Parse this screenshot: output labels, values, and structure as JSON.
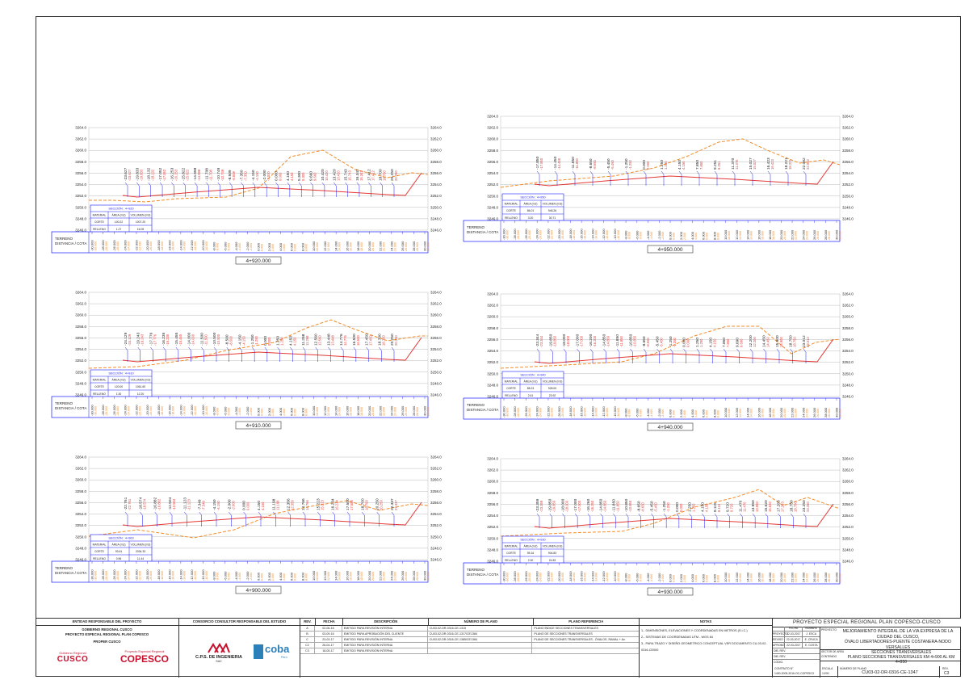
{
  "sections": [
    {
      "id": "s4920",
      "chainage": "4+920.000",
      "seccion_title": "SECCIÓN : 4+920",
      "material_header": "MATERIAL",
      "area_header": "ÁREA (m2)",
      "volumen_header": "VOLUMEN (m3)",
      "corte_label": "CORTE",
      "corte_area": "100.22",
      "corte_vol": "1007.20",
      "relleno_label": "RELLENO",
      "relleno_area": "1.27",
      "relleno_vol": "16.05",
      "offsets_top": [
        "-23.627",
        "-19.833",
        "-18.132",
        "-17.052",
        "-16.253",
        "-15.822",
        "-14.998",
        "-11.708",
        "-10.749",
        "-8.509",
        "-7.350",
        "-4.150",
        "-2.000",
        "0.000",
        "4.150",
        "5.300",
        "9.660",
        "10.420",
        "13.420",
        "15.743",
        "16.342",
        "17.412",
        "18.700",
        "20.250"
      ]
    },
    {
      "id": "s4950",
      "chainage": "4+950.000",
      "seccion_title": "SECCIÓN : 4+950",
      "material_header": "MATERIAL",
      "area_header": "ÁREA (m2)",
      "volumen_header": "VOLUMEN (m3)",
      "corte_label": "CORTE",
      "corte_area": "86.01",
      "corte_vol": "946.26",
      "relleno_label": "RELLENO",
      "relleno_area": "3.20",
      "relleno_vol": "30.71",
      "offsets_top": [
        "-17.850",
        "-14.450",
        "-11.850",
        "-8.650",
        "-5.450",
        "-1.250",
        "0.000",
        "1.250",
        "4.150",
        "7.850",
        "9.251",
        "11.370",
        "15.027",
        "16.423",
        "18.221",
        "22.092"
      ]
    },
    {
      "id": "s4910",
      "chainage": "4+910.000",
      "seccion_title": "SECCIÓN : 4+910",
      "material_header": "MATERIAL",
      "area_header": "ÁREA (m2)",
      "volumen_header": "VOLUMEN (m3)",
      "corte_label": "CORTE",
      "corte_area": "120.00",
      "corte_vol": "1061.60",
      "relleno_label": "RELLENO",
      "relleno_area": "1.30",
      "relleno_vol": "12.20",
      "offsets_top": [
        "-24.129",
        "-19.243",
        "-17.776",
        "-16.235",
        "-15.455",
        "-14.000",
        "-11.500",
        "-10.500",
        "-8.500",
        "-4.150",
        "-1.250",
        "0.000",
        "1.250",
        "4.150",
        "11.268",
        "12.560",
        "13.448",
        "14.776",
        "16.500",
        "17.450",
        "18.700",
        "20.250"
      ]
    },
    {
      "id": "s4940",
      "chainage": "4+940.000",
      "seccion_title": "SECCIÓN : 4+940",
      "material_header": "MATERIAL",
      "area_header": "ÁREA (m2)",
      "volumen_header": "VOLUMEN (m3)",
      "corte_label": "CORTE",
      "corte_area": "88.23",
      "corte_vol": "928.00",
      "relleno_label": "RELLENO",
      "relleno_area": "2.61",
      "relleno_vol": "23.92",
      "offsets_top": [
        "-23.344",
        "-19.850",
        "-18.000",
        "-17.000",
        "-16.200",
        "-14.850",
        "-11.850",
        "-10.850",
        "-8.650",
        "-5.450",
        "-1.250",
        "0.000",
        "1.250",
        "4.150",
        "7.850",
        "9.690",
        "12.200",
        "14.450",
        "15.900",
        "18.750",
        "23.012"
      ]
    },
    {
      "id": "s4900",
      "chainage": "4+900.000",
      "seccion_title": "SECCIÓN : 4+900",
      "material_header": "MATERIAL",
      "area_header": "ÁREA (m2)",
      "volumen_header": "VOLUMEN (m3)",
      "corte_label": "CORTE",
      "corte_area": "93.61",
      "corte_vol": "2034.33",
      "relleno_label": "RELLENO",
      "relleno_area": "0.96",
      "relleno_vol": "11.44",
      "offsets_top": [
        "-22.761",
        "-18.574",
        "-16.882",
        "-12.504",
        "-11.123",
        "-7.349",
        "-4.150",
        "-2.000",
        "0.000",
        "4.150",
        "11.198",
        "12.356",
        "14.766",
        "15.223",
        "16.234",
        "17.500",
        "18.700",
        "20.250",
        "22.337"
      ]
    },
    {
      "id": "s4930",
      "chainage": "4+930.000",
      "seccion_title": "SECCIÓN : 4+930",
      "material_header": "MATERIAL",
      "area_header": "ÁREA (m2)",
      "volumen_header": "VOLUMEN (m3)",
      "corte_label": "CORTE",
      "corte_area": "95.16",
      "corte_vol": "904.83",
      "relleno_label": "RELLENO",
      "relleno_area": "2.30",
      "relleno_vol": "24.83",
      "offsets_top": [
        "-23.359",
        "-19.850",
        "-18.000",
        "-17.000",
        "-16.260",
        "-14.850",
        "-11.850",
        "-10.850",
        "-8.650",
        "-5.450",
        "-1.250",
        "0.000",
        "1.250",
        "4.150",
        "8.115",
        "9.720",
        "11.470",
        "13.950",
        "15.620",
        "17.263",
        "18.750",
        "23.250"
      ]
    }
  ],
  "axis": {
    "elevations": [
      "3264.0",
      "3262.0",
      "3260.0",
      "3258.0",
      "3256.0",
      "3254.0",
      "3252.0",
      "3250.0",
      "3248.0",
      "3246.0"
    ],
    "bottom_offsets": [
      "-30.000",
      "-28.000",
      "-26.000",
      "-24.000",
      "-22.000",
      "-20.000",
      "-18.000",
      "-16.000",
      "-14.000",
      "-12.000",
      "-10.000",
      "-8.000",
      "-6.000",
      "-4.000",
      "-2.000",
      "0.000",
      "2.000",
      "4.000",
      "6.000",
      "8.000",
      "10.000",
      "12.000",
      "14.000",
      "16.000",
      "18.000",
      "20.000",
      "22.000",
      "24.000",
      "26.000",
      "28.000",
      "30.000"
    ],
    "terreno_label": "TERRENO",
    "distancia_label": "DISTANCIA / COTA"
  },
  "title_block": {
    "entidad_head": "ENTIDAD RESPONSABLE DEL PROYECTO",
    "gobierno": "GOBIERNO REGIONAL CUSCO",
    "proyecto_especial": "PROYECTO ESPECIAL REGIONAL PLAN COPESCO",
    "proper": "PROPER CUSCO",
    "logo_gob": "Gobierno Regional",
    "logo_cusco": "CUSCO",
    "logo_pe": "Proyecto Especial Regional",
    "logo_copesco": "COPESCO",
    "consorcio_head": "CONSORCIO CONSULTOR RESPONSABLE DEL ESTUDIO",
    "cps": "C.P.S. DE INGENIERIA",
    "cps_sub": "SAC",
    "coba": "coba",
    "coba_sub": "Perú",
    "rev_head": "REV.",
    "fecha_head": "FECHA",
    "descripcion_head": "DESCRIPCIÓN",
    "numero_head": "NÚMERO DE PLANO",
    "plano_ref_head": "PLANO REFERENCIA",
    "notas_head": "NOTAS",
    "revisions": [
      {
        "rev": "A",
        "fecha": "02-06-16",
        "desc": "EMITIDO PARA REVISIÓN INTERNA",
        "num": "CU03-02-DR-0316-CE-1315",
        "ref": "PLANO ÍNDICE SECCIONES TRANSVERSALES"
      },
      {
        "rev": "B",
        "fecha": "03-09-16",
        "desc": "EMITIDO PARA APROBACIÓN DEL CLIENTE",
        "num": "CU03-02-DR-0316-CE-1317/CE1384",
        "ref": "PLANO DE SECCIONES TRANSVERSALES"
      },
      {
        "rev": "C",
        "fecha": "23-03-17",
        "desc": "EMITIDO PARA REVISIÓN INTERNA",
        "num": "CU03-02-DR-0316-CE-1385/CE1384",
        "ref": "PLANO DE SECCIONES TRANSVERSALES - ÓVALOS, RAMAL + Av."
      },
      {
        "rev": "C2",
        "fecha": "26-04-17",
        "desc": "EMITIDO PARA REVISIÓN INTERNA",
        "num": "",
        "ref": ""
      },
      {
        "rev": "C3",
        "fecha": "18-05-17",
        "desc": "EMITIDO PARA REVISIÓN INTERNA",
        "num": "",
        "ref": ""
      }
    ],
    "notas": [
      "1.- DIMENSIONES, ELEVACIONES Y COORDENADAS EN METROS (S.I.C.)",
      "2.- SISTEMAS DE COORDENADAS UTM - WGS 84",
      "3.- PARA TRAZO Y DISEÑO GEOMETRICO CONCEPTUAL VER DOCUMENTO CU-03-02-0316-CE000"
    ],
    "proyecto_head": "PROYECTO ESPECIAL REGIONAL PLAN COPESCO-CUSCO",
    "proyecto_label": "PROYECTO",
    "proyecto_l1": "MEJORAMIENTO INTEGRAL DE LA VIA EXPRESA DE LA",
    "proyecto_l2": "CIUDAD DEL CUSCO,",
    "proyecto_l3": "ÓVALO LIBERTADORES-PUENTE COSTANERA-NODO VERSALLES",
    "sector_label": "SECTOR DE ÁREA",
    "contenido_label": "CONTENIDO",
    "contenido_l1": "SECCIONES TRANSVERSALES",
    "contenido_l2": "PLANO SECCIONES TRANSVERSALES KM 4+900 AL KM 4+950",
    "fecha_col": "FECHA",
    "nombre_col": "NOMBRE",
    "proyecto_row": "PROYECTO",
    "revisado_row": "REVISÓ",
    "aprobado_row": "APROBÓ",
    "dib_row": "DIB. REV.",
    "disp_row": "DIB. REV.",
    "codigo_row": "CÓDIG.",
    "p_fecha": "22-03-2017",
    "p_nombre": "J. ESCA",
    "r_fecha": "22-03-2017",
    "r_nombre": "E. CRUCA",
    "a_fecha": "22-03-2017",
    "a_nombre": "E. COSTA",
    "contrato_label": "CONTRATO N°",
    "contrato_val": "1400-2005-2016-OC-COPESCO",
    "escala_label": "ESCALA",
    "escala_val": "1/200",
    "numero_plano_label": "NÚMERO DE PLANO",
    "numero_plano_val": "CU03-02-DR-0316-CE-1347",
    "rev_label": "REV.",
    "rev_val": "C3"
  },
  "colors": {
    "grid": "#bbbbbb",
    "terrain": "#f28c28",
    "design": "#e53935",
    "leader": "#1a1aff",
    "table": "#1a1aff",
    "offset_text": "#222222"
  }
}
